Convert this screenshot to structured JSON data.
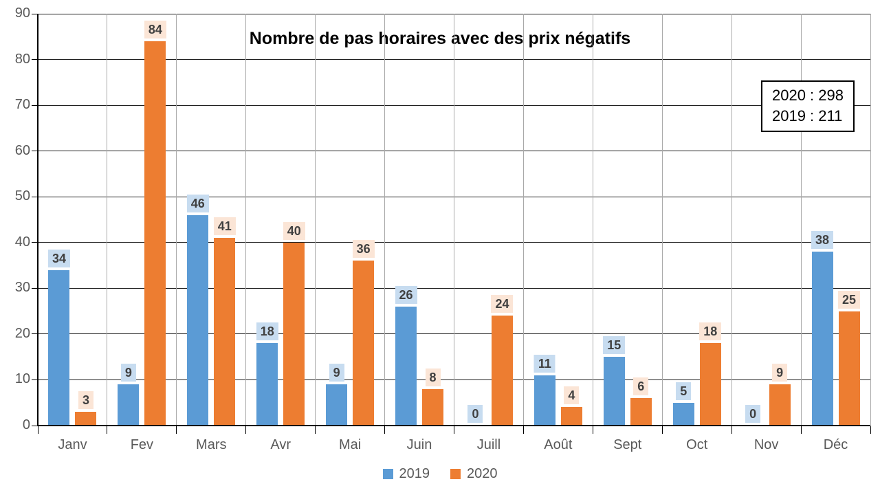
{
  "title": "Nombre de pas horaires avec des prix négatifs",
  "annotation_box": {
    "lines": [
      "2020 : 298",
      "2019 : 211"
    ]
  },
  "colors": {
    "series_2019": "#5B9BD5",
    "series_2020": "#ED7D31",
    "label_bg_2019": "#C7DCF0",
    "label_bg_2020": "#FBE5D6",
    "label_text": "#404040",
    "axis_text": "#595959",
    "gridline_horizontal": "#1f1f1f",
    "gridline_vertical": "#a9a9a9",
    "axis_line": "#000000"
  },
  "chart_data": {
    "type": "bar",
    "title": "Nombre de pas horaires avec des prix négatifs",
    "categories": [
      "Janv",
      "Fev",
      "Mars",
      "Avr",
      "Mai",
      "Juin",
      "Juill",
      "Août",
      "Sept",
      "Oct",
      "Nov",
      "Déc"
    ],
    "series": [
      {
        "name": "2019",
        "color": "#5B9BD5",
        "label_bg": "#C7DCF0",
        "values": [
          34,
          9,
          46,
          18,
          9,
          26,
          0,
          11,
          15,
          5,
          0,
          38
        ]
      },
      {
        "name": "2020",
        "color": "#ED7D31",
        "label_bg": "#FBE5D6",
        "values": [
          3,
          84,
          41,
          40,
          36,
          8,
          24,
          4,
          6,
          18,
          9,
          25
        ]
      }
    ],
    "totals": {
      "2020": 298,
      "2019": 211
    },
    "xlabel": "",
    "ylabel": "",
    "ylim": [
      0,
      90
    ],
    "ytick_step": 10,
    "yticks": [
      0,
      10,
      20,
      30,
      40,
      50,
      60,
      70,
      80,
      90
    ],
    "grid": true,
    "legend_position": "bottom",
    "data_labels": true
  }
}
